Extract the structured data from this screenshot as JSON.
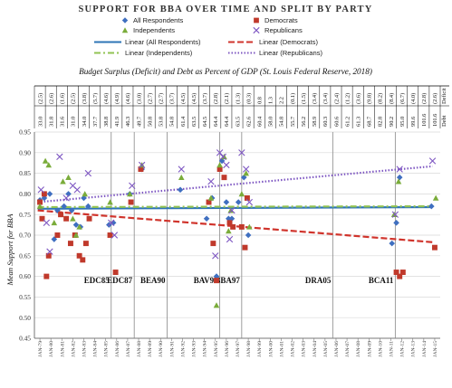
{
  "chart_data": {
    "type": "scatter",
    "title": "SUPPORT FOR BBA OVER TIME AND SPLIT BY PARTY",
    "subtitle": "Budget Surplus (Deficit) and Debt as Percent of GDP (St. Louis Federal Reserve, 2018)",
    "ylabel": "Mean Support for BBA",
    "ylim": [
      0.45,
      0.95
    ],
    "yticks": [
      0.45,
      0.5,
      0.55,
      0.6,
      0.65,
      0.7,
      0.75,
      0.8,
      0.85,
      0.9,
      0.95
    ],
    "grid": true,
    "legend": {
      "placement": "top",
      "entries": [
        "All Respondents",
        "Democrats",
        "Independents",
        "Republicans",
        "Linear (All Respondents)",
        "Linear (Democrats)",
        "Linear (Independents)",
        "Linear (Republicans)"
      ]
    },
    "x_labels": [
      "JAN-79",
      "JAN-80",
      "JAN-81",
      "JAN-82",
      "JAN-83",
      "JAN-84",
      "JAN-85",
      "JAN-86",
      "JAN-87",
      "JAN-88",
      "JAN-89",
      "JAN-90",
      "JAN-91",
      "JAN-92",
      "JAN-93",
      "JAN-94",
      "JAN-95",
      "JAN-96",
      "JAN-97",
      "JAN-98",
      "JAN-99",
      "JAN-00",
      "JAN-01",
      "JAN-02",
      "JAN-03",
      "JAN-04",
      "JAN-05",
      "JAN-06",
      "JAN-07",
      "JAN-08",
      "JAN-09",
      "JAN-10",
      "JAN-11",
      "JAN-12",
      "JAN-13",
      "JAN-14",
      "JAN-15"
    ],
    "table": {
      "row_labels": [
        "Deficit",
        "Debt"
      ],
      "deficit": [
        "(2.5)",
        "(2.6)",
        "(1.6)",
        "(2.5)",
        "(3.8)",
        "(5.7)",
        "(4.6)",
        "(4.9)",
        "(4.6)",
        "(3.0)",
        "(2.7)",
        "(2.7)",
        "(3.7)",
        "(4.5)",
        "(4.5)",
        "(3.7)",
        "(2.8)",
        "(2.1)",
        "(1.3)",
        "(0.3)",
        "0.8",
        "1.3",
        "2.2",
        "(0.1)",
        "(1.5)",
        "(3.4)",
        "(3.4)",
        "(2.4)",
        "(1.2)",
        "(3.6)",
        "(9.8)",
        "(8.2)",
        "(8.4)",
        "(6.7)",
        "(4.0)",
        "(2.8)",
        "(2.6)"
      ],
      "debt": [
        "33.0",
        "31.8",
        "31.6",
        "31.0",
        "34.0",
        "37.7",
        "38.8",
        "41.9",
        "46.3",
        "49.7",
        "50.8",
        "53.8",
        "54.8",
        "61.4",
        "63.5",
        "64.5",
        "64.4",
        "64.4",
        "63.5",
        "62.6",
        "60.4",
        "58.0",
        "54.8",
        "55.7",
        "56.2",
        "58.9",
        "60.3",
        "60.6",
        "61.2",
        "61.3",
        "68.7",
        "82.8",
        "90.2",
        "95.0",
        "99.6",
        "101.6",
        "101.6"
      ]
    },
    "events": [
      {
        "label": "EDC85",
        "x": 1985.7
      },
      {
        "label": "EDC87",
        "x": 1987.8
      },
      {
        "label": "BEA90",
        "x": 1990.8
      },
      {
        "label": "BAV95",
        "x": 1995.6
      },
      {
        "label": "BBA97",
        "x": 1997.6
      },
      {
        "label": "DRA05",
        "x": 2005.9
      },
      {
        "label": "BCA11",
        "x": 2011.6
      }
    ],
    "series": [
      {
        "name": "All Respondents",
        "color": "#3f6fc0",
        "marker": "diamond",
        "points": [
          [
            1979.2,
            0.785
          ],
          [
            1979.6,
            0.79
          ],
          [
            1980.1,
            0.8
          ],
          [
            1980.5,
            0.69
          ],
          [
            1980.8,
            0.76
          ],
          [
            1981.4,
            0.77
          ],
          [
            1981.8,
            0.8
          ],
          [
            1982.1,
            0.76
          ],
          [
            1982.5,
            0.725
          ],
          [
            1982.9,
            0.72
          ],
          [
            1983.2,
            0.79
          ],
          [
            1983.6,
            0.77
          ],
          [
            1985.5,
            0.725
          ],
          [
            1985.9,
            0.73
          ],
          [
            1987.4,
            0.8
          ],
          [
            1988.5,
            0.86
          ],
          [
            1992.0,
            0.81
          ],
          [
            1994.4,
            0.74
          ],
          [
            1994.9,
            0.79
          ],
          [
            1995.3,
            0.6
          ],
          [
            1995.8,
            0.88
          ],
          [
            1996.2,
            0.78
          ],
          [
            1996.4,
            0.74
          ],
          [
            1996.7,
            0.74
          ],
          [
            1997.3,
            0.78
          ],
          [
            1997.8,
            0.84
          ],
          [
            1998.2,
            0.7
          ],
          [
            2011.3,
            0.68
          ],
          [
            2011.7,
            0.73
          ],
          [
            2012.0,
            0.84
          ],
          [
            2014.9,
            0.77
          ]
        ]
      },
      {
        "name": "Democrats",
        "color": "#c0392b",
        "marker": "square",
        "points": [
          [
            1979.2,
            0.78
          ],
          [
            1979.4,
            0.74
          ],
          [
            1979.6,
            0.8
          ],
          [
            1979.8,
            0.6
          ],
          [
            1980.0,
            0.65
          ],
          [
            1980.8,
            0.7
          ],
          [
            1981.1,
            0.75
          ],
          [
            1981.6,
            0.74
          ],
          [
            1982.0,
            0.68
          ],
          [
            1982.4,
            0.7
          ],
          [
            1982.8,
            0.65
          ],
          [
            1983.1,
            0.64
          ],
          [
            1983.4,
            0.68
          ],
          [
            1983.7,
            0.74
          ],
          [
            1985.6,
            0.7
          ],
          [
            1986.1,
            0.61
          ],
          [
            1987.5,
            0.78
          ],
          [
            1988.4,
            0.86
          ],
          [
            1994.6,
            0.78
          ],
          [
            1995.0,
            0.68
          ],
          [
            1995.3,
            0.59
          ],
          [
            1995.6,
            0.86
          ],
          [
            1996.0,
            0.84
          ],
          [
            1996.5,
            0.73
          ],
          [
            1996.8,
            0.72
          ],
          [
            1997.6,
            0.72
          ],
          [
            1997.9,
            0.67
          ],
          [
            1998.1,
            0.79
          ],
          [
            2011.7,
            0.61
          ],
          [
            2012.0,
            0.6
          ],
          [
            2012.3,
            0.61
          ],
          [
            2015.2,
            0.67
          ]
        ]
      },
      {
        "name": "Independents",
        "color": "#7aac3a",
        "marker": "triangle",
        "points": [
          [
            1979.2,
            0.77
          ],
          [
            1979.7,
            0.88
          ],
          [
            1980.0,
            0.87
          ],
          [
            1980.5,
            0.73
          ],
          [
            1981.3,
            0.83
          ],
          [
            1981.8,
            0.84
          ],
          [
            1982.2,
            0.74
          ],
          [
            1982.5,
            0.7
          ],
          [
            1982.8,
            0.72
          ],
          [
            1983.3,
            0.8
          ],
          [
            1985.6,
            0.78
          ],
          [
            1987.4,
            0.8
          ],
          [
            1988.5,
            0.87
          ],
          [
            1992.1,
            0.84
          ],
          [
            1994.8,
            0.79
          ],
          [
            1995.3,
            0.53
          ],
          [
            1995.6,
            0.87
          ],
          [
            1996.0,
            0.89
          ],
          [
            1996.4,
            0.71
          ],
          [
            1996.6,
            0.76
          ],
          [
            1997.6,
            0.8
          ],
          [
            1998.0,
            0.85
          ],
          [
            1998.3,
            0.72
          ],
          [
            2011.5,
            0.75
          ],
          [
            2011.9,
            0.83
          ],
          [
            2015.3,
            0.79
          ]
        ]
      },
      {
        "name": "Republicans",
        "color": "#7e57c2",
        "marker": "x",
        "points": [
          [
            1979.3,
            0.81
          ],
          [
            1979.8,
            0.73
          ],
          [
            1980.1,
            0.66
          ],
          [
            1981.0,
            0.89
          ],
          [
            1981.6,
            0.79
          ],
          [
            1982.2,
            0.82
          ],
          [
            1982.6,
            0.81
          ],
          [
            1983.6,
            0.85
          ],
          [
            1985.7,
            0.73
          ],
          [
            1986.0,
            0.7
          ],
          [
            1987.6,
            0.82
          ],
          [
            1988.5,
            0.87
          ],
          [
            1992.1,
            0.86
          ],
          [
            1994.8,
            0.83
          ],
          [
            1995.2,
            0.65
          ],
          [
            1995.6,
            0.9
          ],
          [
            1995.9,
            0.89
          ],
          [
            1996.2,
            0.87
          ],
          [
            1996.5,
            0.69
          ],
          [
            1996.7,
            0.76
          ],
          [
            1997.6,
            0.9
          ],
          [
            1998.0,
            0.86
          ],
          [
            1998.3,
            0.78
          ],
          [
            2011.6,
            0.75
          ],
          [
            2012.0,
            0.86
          ],
          [
            2015.0,
            0.88
          ]
        ]
      }
    ],
    "trendlines": [
      {
        "name": "Linear (All Respondents)",
        "color": "#2e75b6",
        "style": "solid",
        "from": [
          1979.0,
          0.764
        ],
        "to": [
          2015.0,
          0.768
        ]
      },
      {
        "name": "Linear (Democrats)",
        "color": "#d0342c",
        "style": "dashed",
        "from": [
          1979.0,
          0.76
        ],
        "to": [
          2015.0,
          0.683
        ]
      },
      {
        "name": "Linear (Independents)",
        "color": "#92c353",
        "style": "dashdot",
        "from": [
          1979.0,
          0.768
        ],
        "to": [
          2015.0,
          0.77
        ]
      },
      {
        "name": "Linear (Republicans)",
        "color": "#7e57c2",
        "style": "dotted",
        "from": [
          1979.0,
          0.78
        ],
        "to": [
          2015.0,
          0.867
        ]
      }
    ]
  }
}
